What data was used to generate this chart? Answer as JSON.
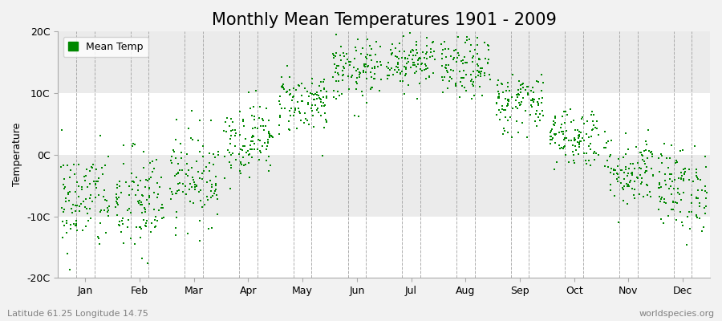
{
  "title": "Monthly Mean Temperatures 1901 - 2009",
  "ylabel": "Temperature",
  "ylim": [
    -20,
    20
  ],
  "yticks": [
    -20,
    -10,
    0,
    10,
    20
  ],
  "ytick_labels": [
    "-20C",
    "-10C",
    "0C",
    "10C",
    "20C"
  ],
  "months": [
    "Jan",
    "Feb",
    "Mar",
    "Apr",
    "May",
    "Jun",
    "Jul",
    "Aug",
    "Sep",
    "Oct",
    "Nov",
    "Dec"
  ],
  "monthly_mean": [
    -7.5,
    -8.0,
    -3.5,
    2.5,
    8.5,
    13.5,
    15.5,
    14.0,
    8.5,
    3.0,
    -2.5,
    -5.5
  ],
  "monthly_std": [
    4.2,
    4.5,
    3.8,
    3.0,
    2.5,
    2.5,
    2.2,
    2.5,
    2.5,
    2.5,
    3.0,
    3.5
  ],
  "n_years": 109,
  "marker_color": "#008800",
  "marker_size": 4,
  "bg_band_colors": [
    "#FFFFFF",
    "#EBEBEB",
    "#FFFFFF",
    "#EBEBEB"
  ],
  "bg_band_ranges": [
    [
      -20,
      -10
    ],
    [
      -10,
      0
    ],
    [
      0,
      10
    ],
    [
      10,
      20
    ]
  ],
  "fig_background": "#F2F2F2",
  "legend_label": "Mean Temp",
  "footer_left": "Latitude 61.25 Longitude 14.75",
  "footer_right": "worldspecies.org",
  "title_fontsize": 15,
  "axis_fontsize": 9,
  "footer_fontsize": 8,
  "seed": 42
}
